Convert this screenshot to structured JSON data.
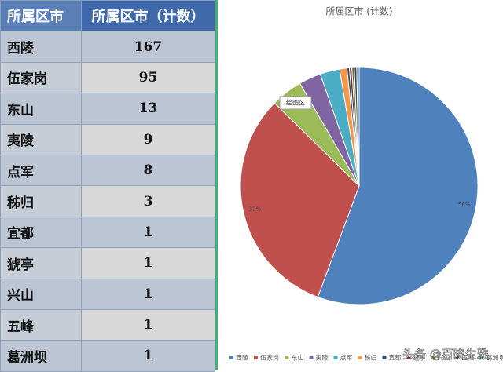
{
  "table": {
    "header": [
      "所属区市",
      "所属区市（计数）"
    ],
    "rows": [
      [
        "西陵",
        "167"
      ],
      [
        "伍家岗",
        "95"
      ],
      [
        "东山",
        "13"
      ],
      [
        "夷陵",
        "9"
      ],
      [
        "点军",
        "8"
      ],
      [
        "秭归",
        "3"
      ],
      [
        "宜都",
        "1"
      ],
      [
        "猇亭",
        "1"
      ],
      [
        "兴山",
        "1"
      ],
      [
        "五峰",
        "1"
      ],
      [
        "葛洲坝",
        "1"
      ]
    ]
  },
  "chart_data": {
    "type": "pie",
    "title": "所属区市 (计数)",
    "categories": [
      "西陵",
      "伍家岗",
      "东山",
      "夷陵",
      "点军",
      "秭归",
      "宜都",
      "猇亭",
      "兴山",
      "五峰",
      "葛洲坝"
    ],
    "values": [
      55.67,
      31.67,
      4.33,
      3,
      2.67,
      1,
      0.33,
      0.33,
      0.33,
      0.33,
      0.33
    ],
    "value_labels": [
      "56%",
      "32%",
      null,
      null,
      null,
      null,
      null,
      null,
      null,
      null,
      null
    ],
    "colors": [
      "#4f81bd",
      "#c0504d",
      "#9bbb59",
      "#8064a2",
      "#4bacc6",
      "#f79646",
      "#2c4d75",
      "#772c2a",
      "#5f7530",
      "#4d3b62",
      "#276a7c"
    ],
    "tooltip": "绘图区"
  },
  "watermark": "头条 @百晓生雅"
}
